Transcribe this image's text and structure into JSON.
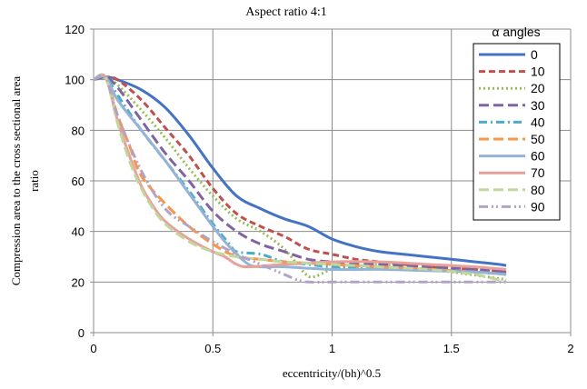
{
  "chart_data": {
    "type": "line",
    "title": "Aspect ratio 4:1",
    "xlabel": "eccentricity/(bh)^0.5",
    "ylabel_lines": [
      "Compression area to the cross sectional area",
      "ratio"
    ],
    "xlim": [
      0,
      2
    ],
    "ylim": [
      0,
      120
    ],
    "x_ticks": [
      0,
      0.5,
      1,
      1.5,
      2
    ],
    "x_tick_labels": [
      "0",
      "0.5",
      "1",
      "1.5",
      "2"
    ],
    "y_ticks": [
      0,
      20,
      40,
      60,
      80,
      100,
      120
    ],
    "y_tick_labels": [
      "0",
      "20",
      "40",
      "60",
      "80",
      "100",
      "120"
    ],
    "grid": true,
    "legend": {
      "title": "α angles",
      "placement": "top-right"
    },
    "series": [
      {
        "name": "0",
        "color": "#4472C4",
        "dash": "solid",
        "points": [
          [
            0,
            100
          ],
          [
            0.05,
            101
          ],
          [
            0.1,
            100
          ],
          [
            0.2,
            96
          ],
          [
            0.3,
            89
          ],
          [
            0.4,
            78
          ],
          [
            0.5,
            65
          ],
          [
            0.6,
            54
          ],
          [
            0.7,
            49
          ],
          [
            0.8,
            45
          ],
          [
            0.9,
            42
          ],
          [
            1.0,
            37
          ],
          [
            1.1,
            34
          ],
          [
            1.2,
            32
          ],
          [
            1.3,
            31
          ],
          [
            1.4,
            30
          ],
          [
            1.5,
            29
          ],
          [
            1.6,
            28
          ],
          [
            1.7,
            27
          ],
          [
            1.73,
            26.5
          ]
        ]
      },
      {
        "name": "10",
        "color": "#C0504D",
        "dash": "dash",
        "points": [
          [
            0,
            100
          ],
          [
            0.05,
            101
          ],
          [
            0.1,
            100
          ],
          [
            0.2,
            92
          ],
          [
            0.3,
            81
          ],
          [
            0.4,
            70
          ],
          [
            0.5,
            57
          ],
          [
            0.6,
            47
          ],
          [
            0.7,
            42
          ],
          [
            0.8,
            38
          ],
          [
            0.9,
            33
          ],
          [
            1.0,
            31
          ],
          [
            1.1,
            29
          ],
          [
            1.2,
            28
          ],
          [
            1.3,
            27
          ],
          [
            1.4,
            26
          ],
          [
            1.5,
            25.5
          ],
          [
            1.6,
            25
          ],
          [
            1.73,
            24
          ]
        ]
      },
      {
        "name": "20",
        "color": "#9BBB59",
        "dash": "dot",
        "points": [
          [
            0,
            100
          ],
          [
            0.05,
            101
          ],
          [
            0.1,
            98
          ],
          [
            0.2,
            88
          ],
          [
            0.3,
            77
          ],
          [
            0.4,
            65
          ],
          [
            0.5,
            54
          ],
          [
            0.6,
            45
          ],
          [
            0.7,
            40
          ],
          [
            0.8,
            33
          ],
          [
            0.88,
            24
          ],
          [
            0.92,
            22
          ],
          [
            1.0,
            25
          ],
          [
            1.1,
            26
          ],
          [
            1.2,
            27
          ],
          [
            1.3,
            26
          ],
          [
            1.4,
            25
          ],
          [
            1.5,
            24
          ],
          [
            1.73,
            21
          ]
        ]
      },
      {
        "name": "30",
        "color": "#8064A2",
        "dash": "longdash",
        "points": [
          [
            0,
            100
          ],
          [
            0.05,
            101
          ],
          [
            0.1,
            97
          ],
          [
            0.2,
            84
          ],
          [
            0.3,
            71
          ],
          [
            0.4,
            60
          ],
          [
            0.5,
            48
          ],
          [
            0.6,
            40
          ],
          [
            0.7,
            35
          ],
          [
            0.8,
            32
          ],
          [
            0.9,
            29
          ],
          [
            1.0,
            28
          ],
          [
            1.2,
            27
          ],
          [
            1.4,
            26
          ],
          [
            1.6,
            25
          ],
          [
            1.73,
            24
          ]
        ]
      },
      {
        "name": "40",
        "color": "#4BACC6",
        "dash": "dashdot",
        "points": [
          [
            0,
            100
          ],
          [
            0.05,
            101
          ],
          [
            0.1,
            94
          ],
          [
            0.2,
            80
          ],
          [
            0.3,
            68
          ],
          [
            0.4,
            56
          ],
          [
            0.5,
            43
          ],
          [
            0.57,
            35
          ],
          [
            0.6,
            32
          ],
          [
            0.7,
            31
          ],
          [
            0.8,
            28
          ],
          [
            0.9,
            27
          ],
          [
            1.0,
            26
          ],
          [
            1.2,
            25.5
          ],
          [
            1.4,
            25
          ],
          [
            1.6,
            24
          ],
          [
            1.73,
            23
          ]
        ]
      },
      {
        "name": "50",
        "color": "#F79646",
        "dash": "longdash",
        "points": [
          [
            0,
            100
          ],
          [
            0.05,
            101
          ],
          [
            0.1,
            86
          ],
          [
            0.15,
            74
          ],
          [
            0.2,
            62
          ],
          [
            0.3,
            51
          ],
          [
            0.4,
            42
          ],
          [
            0.5,
            35
          ],
          [
            0.6,
            30
          ],
          [
            0.7,
            29
          ],
          [
            0.8,
            28
          ],
          [
            1.0,
            27
          ],
          [
            1.2,
            26
          ],
          [
            1.4,
            25
          ],
          [
            1.6,
            24
          ],
          [
            1.73,
            23
          ]
        ]
      },
      {
        "name": "60",
        "color": "#95B3D7",
        "dash": "solid",
        "points": [
          [
            0,
            100
          ],
          [
            0.05,
            101
          ],
          [
            0.1,
            92
          ],
          [
            0.2,
            80
          ],
          [
            0.3,
            68
          ],
          [
            0.4,
            55
          ],
          [
            0.5,
            42
          ],
          [
            0.55,
            36
          ],
          [
            0.6,
            31
          ],
          [
            0.65,
            27
          ],
          [
            0.7,
            26
          ],
          [
            0.8,
            26
          ],
          [
            1.0,
            25
          ],
          [
            1.2,
            25
          ],
          [
            1.4,
            24.5
          ],
          [
            1.6,
            24
          ],
          [
            1.73,
            23
          ]
        ]
      },
      {
        "name": "70",
        "color": "#E6A19B",
        "dash": "solid",
        "points": [
          [
            0,
            100
          ],
          [
            0.05,
            101
          ],
          [
            0.1,
            84
          ],
          [
            0.15,
            70
          ],
          [
            0.2,
            58
          ],
          [
            0.25,
            50
          ],
          [
            0.3,
            44
          ],
          [
            0.4,
            37
          ],
          [
            0.5,
            32
          ],
          [
            0.55,
            30
          ],
          [
            0.6,
            27
          ],
          [
            0.65,
            26
          ],
          [
            0.8,
            27
          ],
          [
            1.0,
            28
          ],
          [
            1.2,
            28
          ],
          [
            1.4,
            27
          ],
          [
            1.6,
            26
          ],
          [
            1.73,
            25
          ]
        ]
      },
      {
        "name": "80",
        "color": "#C3D69B",
        "dash": "longdash",
        "points": [
          [
            0,
            100
          ],
          [
            0.05,
            101
          ],
          [
            0.1,
            83
          ],
          [
            0.15,
            68
          ],
          [
            0.2,
            57
          ],
          [
            0.25,
            49
          ],
          [
            0.3,
            43
          ],
          [
            0.4,
            36
          ],
          [
            0.5,
            32
          ],
          [
            0.6,
            30
          ],
          [
            0.7,
            29
          ],
          [
            0.8,
            28
          ],
          [
            1.0,
            27
          ],
          [
            1.2,
            26
          ],
          [
            1.4,
            25
          ],
          [
            1.6,
            23
          ],
          [
            1.73,
            20
          ]
        ]
      },
      {
        "name": "90",
        "color": "#B3A2C7",
        "dash": "dashdotdot",
        "points": [
          [
            0,
            100
          ],
          [
            0.05,
            101
          ],
          [
            0.1,
            86
          ],
          [
            0.2,
            64
          ],
          [
            0.3,
            49
          ],
          [
            0.4,
            42
          ],
          [
            0.5,
            36
          ],
          [
            0.6,
            31
          ],
          [
            0.7,
            27
          ],
          [
            0.8,
            23
          ],
          [
            0.85,
            21
          ],
          [
            0.9,
            20
          ],
          [
            1.0,
            20
          ],
          [
            1.2,
            20
          ],
          [
            1.4,
            20
          ],
          [
            1.6,
            20
          ],
          [
            1.73,
            20
          ]
        ]
      }
    ]
  }
}
